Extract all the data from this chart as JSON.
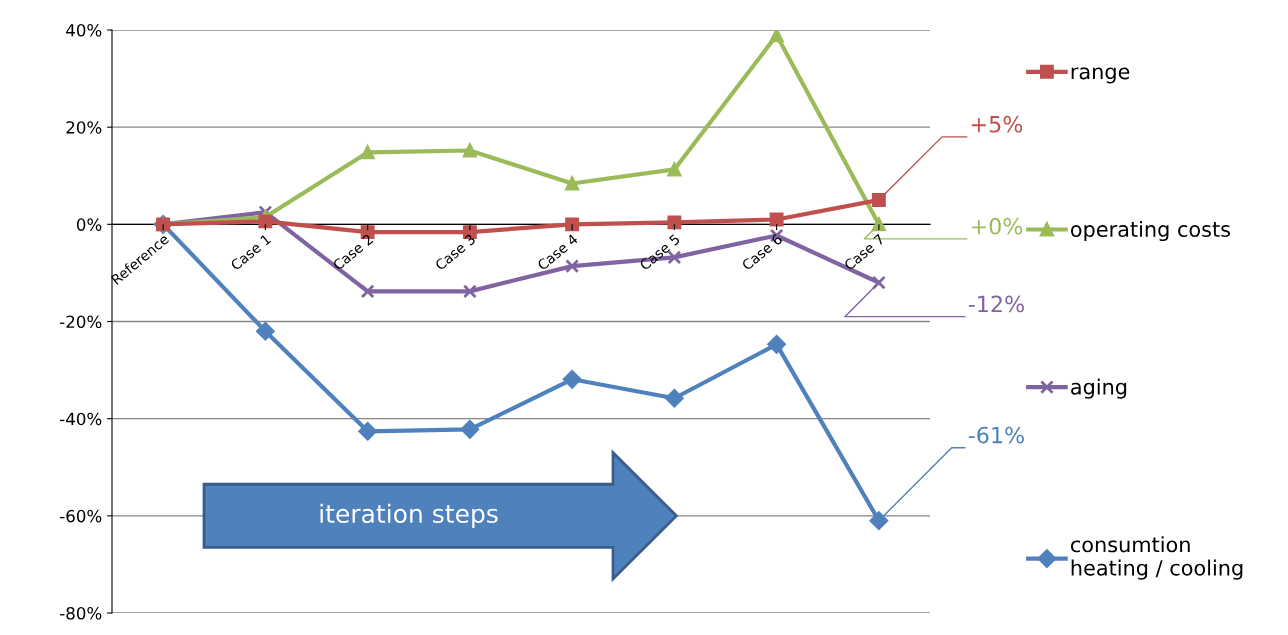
{
  "chart_data": {
    "type": "line",
    "categories": [
      "Reference",
      "Case 1",
      "Case 2",
      "Case 3",
      "Case 4",
      "Case 5",
      "Case 6",
      "Case 7"
    ],
    "ylim": [
      -80,
      40
    ],
    "yticks": [
      {
        "value": -80,
        "label": "-80%"
      },
      {
        "value": -60,
        "label": "-60%"
      },
      {
        "value": -40,
        "label": "-40%"
      },
      {
        "value": -20,
        "label": "-20%"
      },
      {
        "value": 0,
        "label": "0%"
      },
      {
        "value": 20,
        "label": "20%"
      },
      {
        "value": 40,
        "label": "40%"
      }
    ],
    "grid": "y",
    "legend": "right",
    "series": [
      {
        "name": "range",
        "color": "#c0504d",
        "marker": "square",
        "values": [
          0,
          0.6,
          -1.6,
          -1.6,
          0,
          0.4,
          1,
          5
        ]
      },
      {
        "name": "operating costs",
        "color": "#9bbb59",
        "marker": "triangle",
        "values": [
          0,
          1.5,
          14.8,
          15.2,
          8.4,
          11.3,
          38.9,
          0
        ]
      },
      {
        "name": "aging",
        "color": "#8064a2",
        "marker": "cross",
        "values": [
          0,
          2.5,
          -13.8,
          -13.8,
          -8.6,
          -6.8,
          -2.3,
          -12
        ]
      },
      {
        "name": "consumtion\nheating / cooling",
        "color": "#4f81bd",
        "marker": "diamond",
        "values": [
          0,
          -22,
          -42.6,
          -42.2,
          -31.9,
          -35.8,
          -24.7,
          -61
        ]
      }
    ],
    "annotations": [
      "iteration steps",
      {
        "text": "+5%",
        "x": "Case 7",
        "y": 5
      },
      {
        "text": "+0%",
        "x": "Case 7",
        "y": 0
      },
      {
        "text": "-12%",
        "x": "Case 7",
        "y": -12
      },
      {
        "text": "-61%",
        "x": "Case 7",
        "y": -61
      }
    ]
  }
}
